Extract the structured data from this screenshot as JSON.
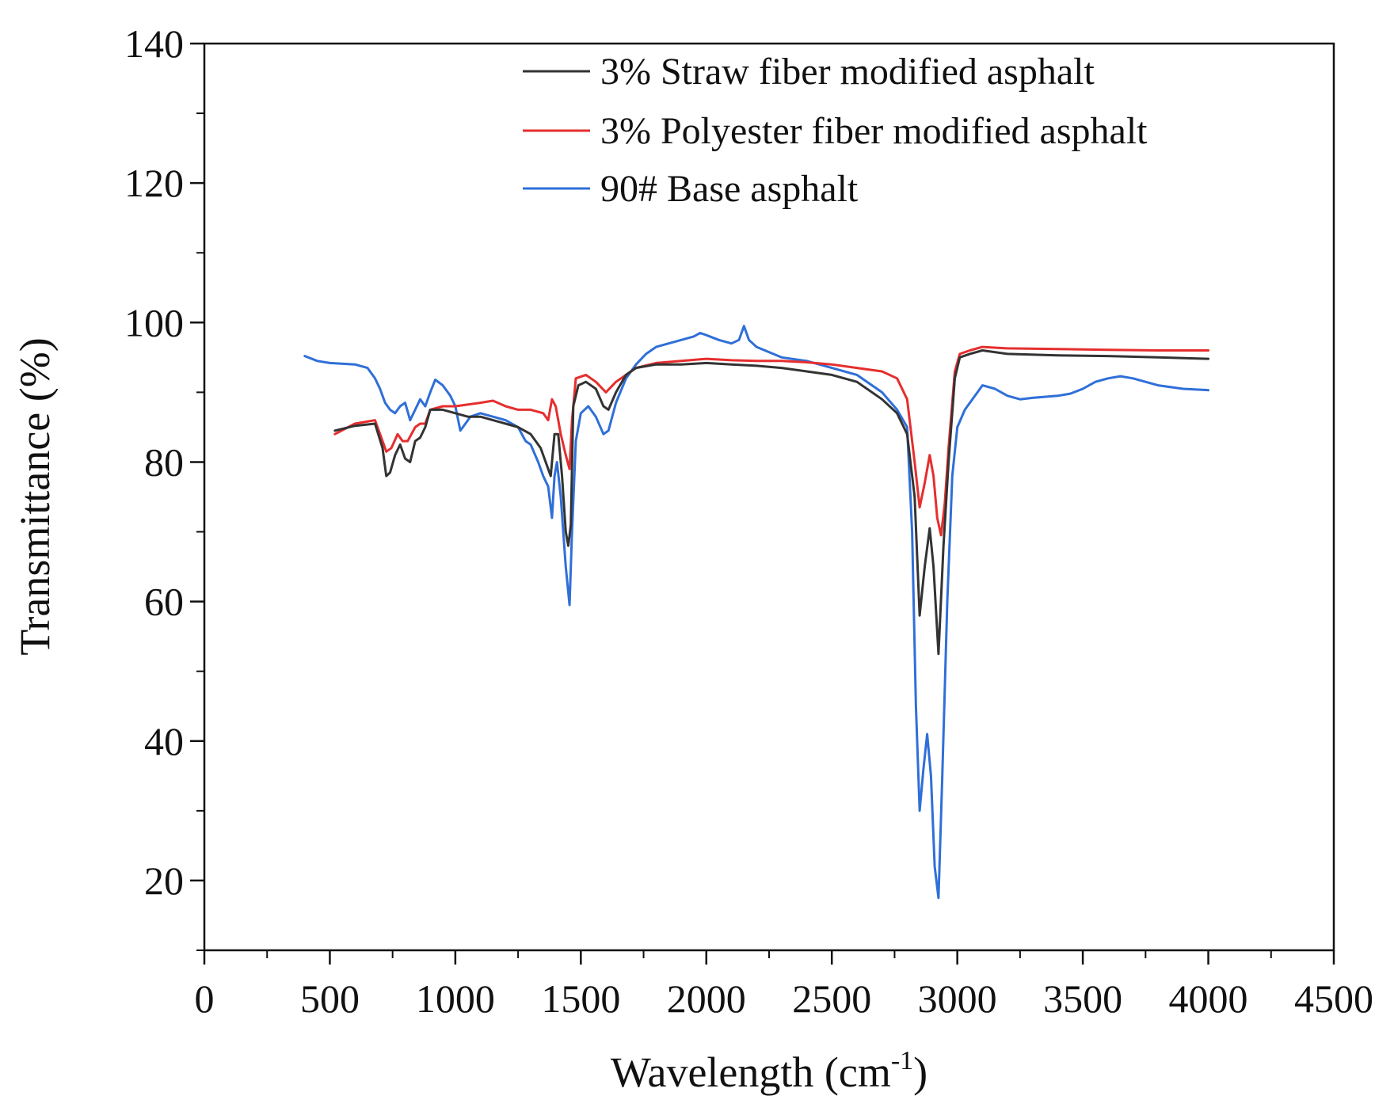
{
  "chart_data": {
    "type": "line",
    "title": "",
    "xlabel": "Wavelength (cm",
    "xlabel_sup": "-1",
    "xlabel_end": ")",
    "ylabel": "Transmittance (%)",
    "xlim": [
      0,
      4500
    ],
    "ylim": [
      10,
      140
    ],
    "x_ticks": [
      0,
      500,
      1000,
      1500,
      2000,
      2500,
      3000,
      3500,
      4000,
      4500
    ],
    "x_tick_labels": [
      "0",
      "500",
      "1000",
      "1500",
      "2000",
      "2500",
      "3000",
      "3500",
      "4000",
      "4500"
    ],
    "y_ticks": [
      20,
      40,
      60,
      80,
      100,
      120,
      140
    ],
    "y_tick_labels": [
      "20",
      "40",
      "60",
      "80",
      "100",
      "120",
      "140"
    ],
    "grid": false,
    "legend_position": "top-right",
    "series": [
      {
        "name": "3% Straw fiber modified asphalt",
        "color": "#333333",
        "points": [
          [
            520,
            84.5
          ],
          [
            600,
            85.2
          ],
          [
            680,
            85.5
          ],
          [
            710,
            82
          ],
          [
            725,
            78
          ],
          [
            740,
            78.5
          ],
          [
            760,
            81
          ],
          [
            780,
            82.5
          ],
          [
            800,
            80.5
          ],
          [
            820,
            80
          ],
          [
            840,
            83
          ],
          [
            860,
            83.5
          ],
          [
            880,
            85
          ],
          [
            900,
            87.5
          ],
          [
            950,
            87.5
          ],
          [
            1000,
            87
          ],
          [
            1050,
            86.5
          ],
          [
            1100,
            86.5
          ],
          [
            1150,
            86
          ],
          [
            1200,
            85.5
          ],
          [
            1250,
            85
          ],
          [
            1300,
            84
          ],
          [
            1340,
            82
          ],
          [
            1360,
            80
          ],
          [
            1380,
            78
          ],
          [
            1395,
            84
          ],
          [
            1410,
            84
          ],
          [
            1425,
            78
          ],
          [
            1440,
            70
          ],
          [
            1450,
            68
          ],
          [
            1460,
            71
          ],
          [
            1470,
            88
          ],
          [
            1490,
            91
          ],
          [
            1520,
            91.5
          ],
          [
            1560,
            90.5
          ],
          [
            1590,
            88
          ],
          [
            1610,
            87.5
          ],
          [
            1640,
            90
          ],
          [
            1680,
            92.5
          ],
          [
            1720,
            93.5
          ],
          [
            1800,
            94
          ],
          [
            1900,
            94
          ],
          [
            2000,
            94.2
          ],
          [
            2100,
            94
          ],
          [
            2200,
            93.8
          ],
          [
            2300,
            93.5
          ],
          [
            2400,
            93
          ],
          [
            2500,
            92.5
          ],
          [
            2600,
            91.5
          ],
          [
            2700,
            89
          ],
          [
            2760,
            87
          ],
          [
            2800,
            84
          ],
          [
            2830,
            75
          ],
          [
            2850,
            58
          ],
          [
            2870,
            65
          ],
          [
            2890,
            70.5
          ],
          [
            2905,
            65
          ],
          [
            2925,
            52.5
          ],
          [
            2945,
            68
          ],
          [
            2965,
            80
          ],
          [
            2990,
            92
          ],
          [
            3010,
            95
          ],
          [
            3050,
            95.5
          ],
          [
            3100,
            96
          ],
          [
            3200,
            95.5
          ],
          [
            3400,
            95.3
          ],
          [
            3600,
            95.2
          ],
          [
            3800,
            95
          ],
          [
            4000,
            94.8
          ]
        ]
      },
      {
        "name": "3% Polyester fiber modified asphalt",
        "color": "#e62e2e",
        "points": [
          [
            520,
            84
          ],
          [
            600,
            85.5
          ],
          [
            680,
            86
          ],
          [
            710,
            83
          ],
          [
            725,
            81.5
          ],
          [
            745,
            82
          ],
          [
            770,
            84
          ],
          [
            790,
            83
          ],
          [
            810,
            83
          ],
          [
            840,
            85
          ],
          [
            860,
            85.5
          ],
          [
            880,
            85.5
          ],
          [
            900,
            87.5
          ],
          [
            950,
            88
          ],
          [
            1000,
            88
          ],
          [
            1100,
            88.5
          ],
          [
            1150,
            88.8
          ],
          [
            1200,
            88
          ],
          [
            1250,
            87.5
          ],
          [
            1300,
            87.5
          ],
          [
            1350,
            87
          ],
          [
            1370,
            86
          ],
          [
            1385,
            89
          ],
          [
            1400,
            88
          ],
          [
            1420,
            84
          ],
          [
            1440,
            81
          ],
          [
            1455,
            79
          ],
          [
            1465,
            86
          ],
          [
            1480,
            92
          ],
          [
            1520,
            92.5
          ],
          [
            1560,
            91.5
          ],
          [
            1600,
            90
          ],
          [
            1640,
            91.5
          ],
          [
            1680,
            92.5
          ],
          [
            1720,
            93.5
          ],
          [
            1800,
            94.2
          ],
          [
            1900,
            94.5
          ],
          [
            2000,
            94.8
          ],
          [
            2100,
            94.6
          ],
          [
            2200,
            94.5
          ],
          [
            2300,
            94.5
          ],
          [
            2400,
            94.3
          ],
          [
            2500,
            94
          ],
          [
            2600,
            93.5
          ],
          [
            2700,
            93
          ],
          [
            2760,
            92
          ],
          [
            2800,
            89
          ],
          [
            2830,
            80
          ],
          [
            2850,
            73.5
          ],
          [
            2870,
            77
          ],
          [
            2890,
            81
          ],
          [
            2905,
            78
          ],
          [
            2920,
            72
          ],
          [
            2935,
            69.5
          ],
          [
            2950,
            74
          ],
          [
            2965,
            82
          ],
          [
            2990,
            93
          ],
          [
            3010,
            95.5
          ],
          [
            3050,
            96
          ],
          [
            3100,
            96.5
          ],
          [
            3200,
            96.3
          ],
          [
            3400,
            96.2
          ],
          [
            3600,
            96.1
          ],
          [
            3800,
            96
          ],
          [
            4000,
            96
          ]
        ]
      },
      {
        "name": "90# Base asphalt",
        "color": "#2f6fd8",
        "points": [
          [
            400,
            95.2
          ],
          [
            450,
            94.5
          ],
          [
            500,
            94.2
          ],
          [
            600,
            94
          ],
          [
            650,
            93.5
          ],
          [
            680,
            92
          ],
          [
            700,
            90.5
          ],
          [
            720,
            88.5
          ],
          [
            740,
            87.5
          ],
          [
            760,
            87
          ],
          [
            780,
            88
          ],
          [
            800,
            88.5
          ],
          [
            820,
            86
          ],
          [
            840,
            87.5
          ],
          [
            860,
            89
          ],
          [
            880,
            88
          ],
          [
            900,
            90
          ],
          [
            920,
            91.8
          ],
          [
            950,
            91
          ],
          [
            980,
            89.5
          ],
          [
            1000,
            88
          ],
          [
            1020,
            84.5
          ],
          [
            1040,
            85.5
          ],
          [
            1060,
            86.5
          ],
          [
            1100,
            87
          ],
          [
            1150,
            86.5
          ],
          [
            1200,
            86
          ],
          [
            1250,
            85
          ],
          [
            1280,
            83
          ],
          [
            1300,
            82.5
          ],
          [
            1330,
            80
          ],
          [
            1350,
            78
          ],
          [
            1370,
            76.5
          ],
          [
            1385,
            72
          ],
          [
            1395,
            78
          ],
          [
            1405,
            80
          ],
          [
            1420,
            75
          ],
          [
            1440,
            65
          ],
          [
            1455,
            59.5
          ],
          [
            1465,
            70
          ],
          [
            1480,
            83
          ],
          [
            1500,
            87
          ],
          [
            1530,
            88
          ],
          [
            1560,
            86.5
          ],
          [
            1590,
            84
          ],
          [
            1610,
            84.5
          ],
          [
            1640,
            88.5
          ],
          [
            1680,
            92
          ],
          [
            1720,
            94
          ],
          [
            1760,
            95.5
          ],
          [
            1800,
            96.5
          ],
          [
            1850,
            97
          ],
          [
            1900,
            97.5
          ],
          [
            1950,
            98
          ],
          [
            1975,
            98.5
          ],
          [
            2000,
            98.2
          ],
          [
            2050,
            97.5
          ],
          [
            2100,
            97
          ],
          [
            2130,
            97.5
          ],
          [
            2150,
            99.5
          ],
          [
            2170,
            97.5
          ],
          [
            2200,
            96.5
          ],
          [
            2300,
            95
          ],
          [
            2400,
            94.5
          ],
          [
            2500,
            93.5
          ],
          [
            2600,
            92.5
          ],
          [
            2700,
            90
          ],
          [
            2760,
            87.5
          ],
          [
            2800,
            85
          ],
          [
            2820,
            70
          ],
          [
            2835,
            45
          ],
          [
            2850,
            30
          ],
          [
            2865,
            36
          ],
          [
            2880,
            41
          ],
          [
            2895,
            35
          ],
          [
            2910,
            22
          ],
          [
            2925,
            17.5
          ],
          [
            2940,
            35
          ],
          [
            2960,
            60
          ],
          [
            2980,
            78
          ],
          [
            3000,
            85
          ],
          [
            3030,
            87.5
          ],
          [
            3060,
            89
          ],
          [
            3100,
            91
          ],
          [
            3150,
            90.5
          ],
          [
            3200,
            89.5
          ],
          [
            3250,
            89
          ],
          [
            3300,
            89.2
          ],
          [
            3400,
            89.5
          ],
          [
            3450,
            89.8
          ],
          [
            3500,
            90.5
          ],
          [
            3550,
            91.5
          ],
          [
            3600,
            92
          ],
          [
            3650,
            92.3
          ],
          [
            3700,
            92
          ],
          [
            3750,
            91.5
          ],
          [
            3800,
            91
          ],
          [
            3900,
            90.5
          ],
          [
            4000,
            90.3
          ]
        ]
      }
    ]
  }
}
